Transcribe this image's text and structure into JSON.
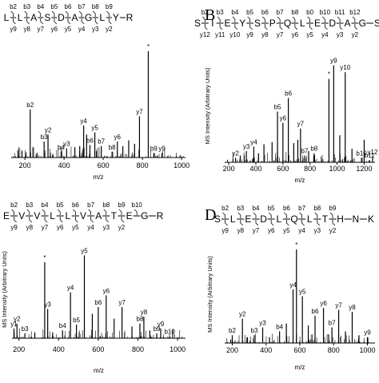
{
  "panels": [
    {
      "letter": "",
      "ion_labels": [
        {
          "seq_index": 1,
          "label": "b2",
          "row": "top"
        },
        {
          "seq_index": 2,
          "label": "b3",
          "row": "top"
        },
        {
          "seq_index": 3,
          "label": "b4",
          "row": "top"
        },
        {
          "seq_index": 4,
          "label": "b5",
          "row": "top"
        },
        {
          "seq_index": 5,
          "label": "b6",
          "row": "top"
        },
        {
          "seq_index": 6,
          "label": "b7",
          "row": "top"
        },
        {
          "seq_index": 7,
          "label": "b8",
          "row": "top"
        },
        {
          "seq_index": 8,
          "label": "b9",
          "row": "top"
        },
        {
          "seq_index": 1,
          "label": "y9",
          "row": "bottom"
        },
        {
          "seq_index": 2,
          "label": "y8",
          "row": "bottom"
        },
        {
          "seq_index": 3,
          "label": "y7",
          "row": "bottom"
        },
        {
          "seq_index": 4,
          "label": "y6",
          "row": "bottom"
        },
        {
          "seq_index": 5,
          "label": "y5",
          "row": "bottom"
        },
        {
          "seq_index": 6,
          "label": "y4",
          "row": "bottom"
        },
        {
          "seq_index": 7,
          "label": "y3",
          "row": "bottom"
        },
        {
          "seq_index": 8,
          "label": "y2",
          "row": "bottom"
        }
      ]
    },
    {
      "letter": "B",
      "ion_labels": [
        {
          "seq_index": 1,
          "label": "b2",
          "row": "top"
        },
        {
          "seq_index": 2,
          "label": "b3",
          "row": "top"
        },
        {
          "seq_index": 3,
          "label": "b4",
          "row": "top"
        },
        {
          "seq_index": 4,
          "label": "b5",
          "row": "top"
        },
        {
          "seq_index": 5,
          "label": "b6",
          "row": "top"
        },
        {
          "seq_index": 6,
          "label": "b7",
          "row": "top"
        },
        {
          "seq_index": 7,
          "label": "b8",
          "row": "top"
        },
        {
          "seq_index": 8,
          "label": "b0",
          "row": "top"
        },
        {
          "seq_index": 9,
          "label": "b10",
          "row": "top"
        },
        {
          "seq_index": 10,
          "label": "b11",
          "row": "top"
        },
        {
          "seq_index": 11,
          "label": "b12",
          "row": "top"
        },
        {
          "seq_index": 1,
          "label": "y12",
          "row": "bottom"
        },
        {
          "seq_index": 2,
          "label": "y11",
          "row": "bottom"
        },
        {
          "seq_index": 3,
          "label": "y10",
          "row": "bottom"
        },
        {
          "seq_index": 4,
          "label": "y9",
          "row": "bottom"
        },
        {
          "seq_index": 5,
          "label": "y8",
          "row": "bottom"
        },
        {
          "seq_index": 6,
          "label": "y7",
          "row": "bottom"
        },
        {
          "seq_index": 7,
          "label": "y6",
          "row": "bottom"
        },
        {
          "seq_index": 8,
          "label": "y5",
          "row": "bottom"
        },
        {
          "seq_index": 9,
          "label": "y4",
          "row": "bottom"
        },
        {
          "seq_index": 10,
          "label": "y3",
          "row": "bottom"
        },
        {
          "seq_index": 11,
          "label": "y2",
          "row": "bottom"
        }
      ]
    },
    {
      "letter": "",
      "ion_labels": [
        {
          "seq_index": 1,
          "label": "b2",
          "row": "top"
        },
        {
          "seq_index": 2,
          "label": "b3",
          "row": "top"
        },
        {
          "seq_index": 3,
          "label": "b4",
          "row": "top"
        },
        {
          "seq_index": 4,
          "label": "b5",
          "row": "top"
        },
        {
          "seq_index": 5,
          "label": "b6",
          "row": "top"
        },
        {
          "seq_index": 6,
          "label": "b7",
          "row": "top"
        },
        {
          "seq_index": 7,
          "label": "b8",
          "row": "top"
        },
        {
          "seq_index": 8,
          "label": "b9",
          "row": "top"
        },
        {
          "seq_index": 9,
          "label": "b10",
          "row": "top"
        },
        {
          "seq_index": 1,
          "label": "y9",
          "row": "bottom"
        },
        {
          "seq_index": 2,
          "label": "y8",
          "row": "bottom"
        },
        {
          "seq_index": 3,
          "label": "y7",
          "row": "bottom"
        },
        {
          "seq_index": 4,
          "label": "y6",
          "row": "bottom"
        },
        {
          "seq_index": 5,
          "label": "y5",
          "row": "bottom"
        },
        {
          "seq_index": 6,
          "label": "y4",
          "row": "bottom"
        },
        {
          "seq_index": 7,
          "label": "y3",
          "row": "bottom"
        },
        {
          "seq_index": 8,
          "label": "y2",
          "row": "bottom"
        }
      ]
    },
    {
      "letter": "D",
      "ion_labels": [
        {
          "seq_index": 1,
          "label": "b2",
          "row": "top"
        },
        {
          "seq_index": 2,
          "label": "b3",
          "row": "top"
        },
        {
          "seq_index": 3,
          "label": "b4",
          "row": "top"
        },
        {
          "seq_index": 4,
          "label": "b5",
          "row": "top"
        },
        {
          "seq_index": 5,
          "label": "b6",
          "row": "top"
        },
        {
          "seq_index": 6,
          "label": "b7",
          "row": "top"
        },
        {
          "seq_index": 7,
          "label": "b8",
          "row": "top"
        },
        {
          "seq_index": 8,
          "label": "b9",
          "row": "top"
        },
        {
          "seq_index": 1,
          "label": "y9",
          "row": "bottom"
        },
        {
          "seq_index": 2,
          "label": "y8",
          "row": "bottom"
        },
        {
          "seq_index": 3,
          "label": "y7",
          "row": "bottom"
        },
        {
          "seq_index": 4,
          "label": "y6",
          "row": "bottom"
        },
        {
          "seq_index": 5,
          "label": "y5",
          "row": "bottom"
        },
        {
          "seq_index": 6,
          "label": "y4",
          "row": "bottom"
        },
        {
          "seq_index": 7,
          "label": "y3",
          "row": "bottom"
        },
        {
          "seq_index": 8,
          "label": "y2",
          "row": "bottom"
        }
      ]
    }
  ],
  "chart_data": [
    {
      "type": "bar",
      "panel": "A",
      "sequence": [
        "L",
        "L",
        "A",
        "S",
        "D",
        "A",
        "G",
        "L",
        "Y",
        "R"
      ],
      "xlabel": "m/z",
      "ylabel": "",
      "xlim": [
        130,
        1020
      ],
      "ylim": [
        0,
        100
      ],
      "xticks": [
        200,
        400,
        600,
        800,
        1000
      ],
      "peaks": [
        {
          "mz": 185,
          "intensity": 6,
          "label": ""
        },
        {
          "mz": 227,
          "intensity": 42,
          "label": "b2"
        },
        {
          "mz": 262,
          "intensity": 4,
          "label": ""
        },
        {
          "mz": 298,
          "intensity": 14,
          "label": "b3"
        },
        {
          "mz": 318,
          "intensity": 20,
          "label": "y2"
        },
        {
          "mz": 343,
          "intensity": 3,
          "label": ""
        },
        {
          "mz": 385,
          "intensity": 5,
          "label": "b4"
        },
        {
          "mz": 413,
          "intensity": 8,
          "label": "y3"
        },
        {
          "mz": 455,
          "intensity": 9,
          "label": ""
        },
        {
          "mz": 480,
          "intensity": 10,
          "label": ""
        },
        {
          "mz": 500,
          "intensity": 28,
          "label": "y4"
        },
        {
          "mz": 515,
          "intensity": 20,
          "label": ""
        },
        {
          "mz": 532,
          "intensity": 11,
          "label": "b6"
        },
        {
          "mz": 557,
          "intensity": 22,
          "label": "y5"
        },
        {
          "mz": 590,
          "intensity": 10,
          "label": "b7"
        },
        {
          "mz": 645,
          "intensity": 5,
          "label": "b8"
        },
        {
          "mz": 672,
          "intensity": 14,
          "label": "y6"
        },
        {
          "mz": 700,
          "intensity": 10,
          "label": ""
        },
        {
          "mz": 730,
          "intensity": 15,
          "label": ""
        },
        {
          "mz": 760,
          "intensity": 12,
          "label": ""
        },
        {
          "mz": 785,
          "intensity": 36,
          "label": "y7"
        },
        {
          "mz": 830,
          "intensity": 93,
          "label": "*"
        },
        {
          "mz": 858,
          "intensity": 4,
          "label": "b9"
        },
        {
          "mz": 900,
          "intensity": 4,
          "label": "y9"
        }
      ]
    },
    {
      "type": "bar",
      "panel": "B",
      "sequence": [
        "S",
        "I",
        "E",
        "Y",
        "S",
        "P",
        "Q",
        "L",
        "E",
        "D",
        "A",
        "G",
        "S"
      ],
      "xlabel": "m/z",
      "ylabel": "MS Intensity (Arbitrary Units)",
      "xlim": [
        170,
        1280
      ],
      "ylim": [
        0,
        100
      ],
      "xticks": [
        200,
        400,
        600,
        800,
        1000,
        1200
      ],
      "peaks": [
        {
          "mz": 250,
          "intensity": 4,
          "label": "y2"
        },
        {
          "mz": 285,
          "intensity": 6,
          "label": ""
        },
        {
          "mz": 330,
          "intensity": 10,
          "label": "y3"
        },
        {
          "mz": 385,
          "intensity": 14,
          "label": "y4"
        },
        {
          "mz": 420,
          "intensity": 8,
          "label": ""
        },
        {
          "mz": 460,
          "intensity": 16,
          "label": ""
        },
        {
          "mz": 520,
          "intensity": 18,
          "label": ""
        },
        {
          "mz": 560,
          "intensity": 45,
          "label": "b5"
        },
        {
          "mz": 600,
          "intensity": 35,
          "label": "y6"
        },
        {
          "mz": 640,
          "intensity": 57,
          "label": "b6"
        },
        {
          "mz": 680,
          "intensity": 17,
          "label": ""
        },
        {
          "mz": 710,
          "intensity": 20,
          "label": ""
        },
        {
          "mz": 730,
          "intensity": 30,
          "label": "y7"
        },
        {
          "mz": 760,
          "intensity": 6,
          "label": "b7"
        },
        {
          "mz": 790,
          "intensity": 10,
          "label": ""
        },
        {
          "mz": 830,
          "intensity": 8,
          "label": "b8"
        },
        {
          "mz": 940,
          "intensity": 74,
          "label": "*"
        },
        {
          "mz": 975,
          "intensity": 86,
          "label": "y9"
        },
        {
          "mz": 1020,
          "intensity": 24,
          "label": ""
        },
        {
          "mz": 1060,
          "intensity": 80,
          "label": "y10"
        },
        {
          "mz": 1110,
          "intensity": 12,
          "label": ""
        },
        {
          "mz": 1180,
          "intensity": 4,
          "label": "b10"
        },
        {
          "mz": 1200,
          "intensity": 20,
          "label": ""
        },
        {
          "mz": 1240,
          "intensity": 2,
          "label": "b11"
        },
        {
          "mz": 1262,
          "intensity": 5,
          "label": "y12"
        }
      ]
    },
    {
      "type": "bar",
      "panel": "C",
      "sequence": [
        "E",
        "V",
        "V",
        "L",
        "L",
        "V",
        "A",
        "T",
        "E",
        "G",
        "R"
      ],
      "xlabel": "m/z",
      "ylabel": "MS Intensity (Arbitrary Units)",
      "xlim": [
        165,
        1040
      ],
      "ylim": [
        0,
        100
      ],
      "xticks": [
        200,
        400,
        600,
        800,
        1000
      ],
      "peaks": [
        {
          "mz": 175,
          "intensity": 10,
          "label": "y1"
        },
        {
          "mz": 190,
          "intensity": 15,
          "label": "y2"
        },
        {
          "mz": 230,
          "intensity": 5,
          "label": "b3"
        },
        {
          "mz": 280,
          "intensity": 6,
          "label": ""
        },
        {
          "mz": 330,
          "intensity": 78,
          "label": "*"
        },
        {
          "mz": 345,
          "intensity": 30,
          "label": "y3"
        },
        {
          "mz": 370,
          "intensity": 6,
          "label": ""
        },
        {
          "mz": 420,
          "intensity": 8,
          "label": "b4"
        },
        {
          "mz": 460,
          "intensity": 47,
          "label": "y4"
        },
        {
          "mz": 490,
          "intensity": 14,
          "label": "b5"
        },
        {
          "mz": 530,
          "intensity": 85,
          "label": "y5"
        },
        {
          "mz": 570,
          "intensity": 25,
          "label": ""
        },
        {
          "mz": 600,
          "intensity": 32,
          "label": "b6"
        },
        {
          "mz": 640,
          "intensity": 44,
          "label": "y6"
        },
        {
          "mz": 680,
          "intensity": 20,
          "label": ""
        },
        {
          "mz": 720,
          "intensity": 32,
          "label": "y7"
        },
        {
          "mz": 770,
          "intensity": 12,
          "label": ""
        },
        {
          "mz": 810,
          "intensity": 15,
          "label": "b8"
        },
        {
          "mz": 830,
          "intensity": 22,
          "label": "y8"
        },
        {
          "mz": 860,
          "intensity": 8,
          "label": ""
        },
        {
          "mz": 895,
          "intensity": 5,
          "label": "b9"
        },
        {
          "mz": 915,
          "intensity": 10,
          "label": "y9"
        },
        {
          "mz": 960,
          "intensity": 2,
          "label": "b10"
        }
      ]
    },
    {
      "type": "bar",
      "panel": "D",
      "sequence": [
        "S",
        "L",
        "E",
        "D",
        "L",
        "Q",
        "L",
        "T",
        "H",
        "N",
        "K"
      ],
      "xlabel": "m/z",
      "ylabel": "MS Intensity (Arbitrary Units)",
      "xlim": [
        155,
        1045
      ],
      "ylim": [
        0,
        100
      ],
      "xticks": [
        200,
        400,
        600,
        800,
        1000
      ],
      "peaks": [
        {
          "mz": 200,
          "intensity": 8,
          "label": "b2"
        },
        {
          "mz": 260,
          "intensity": 25,
          "label": "y2"
        },
        {
          "mz": 290,
          "intensity": 6,
          "label": ""
        },
        {
          "mz": 330,
          "intensity": 8,
          "label": "b3"
        },
        {
          "mz": 380,
          "intensity": 16,
          "label": "y3"
        },
        {
          "mz": 420,
          "intensity": 6,
          "label": ""
        },
        {
          "mz": 480,
          "intensity": 12,
          "label": "b4"
        },
        {
          "mz": 520,
          "intensity": 20,
          "label": ""
        },
        {
          "mz": 560,
          "intensity": 55,
          "label": "y4"
        },
        {
          "mz": 580,
          "intensity": 96,
          "label": "*"
        },
        {
          "mz": 615,
          "intensity": 48,
          "label": "y5"
        },
        {
          "mz": 650,
          "intensity": 18,
          "label": ""
        },
        {
          "mz": 690,
          "intensity": 28,
          "label": "b6"
        },
        {
          "mz": 740,
          "intensity": 36,
          "label": "y6"
        },
        {
          "mz": 790,
          "intensity": 16,
          "label": "b7"
        },
        {
          "mz": 830,
          "intensity": 34,
          "label": "y7"
        },
        {
          "mz": 870,
          "intensity": 12,
          "label": ""
        },
        {
          "mz": 910,
          "intensity": 32,
          "label": "y8"
        },
        {
          "mz": 950,
          "intensity": 8,
          "label": ""
        },
        {
          "mz": 1000,
          "intensity": 6,
          "label": "y9"
        }
      ]
    }
  ]
}
